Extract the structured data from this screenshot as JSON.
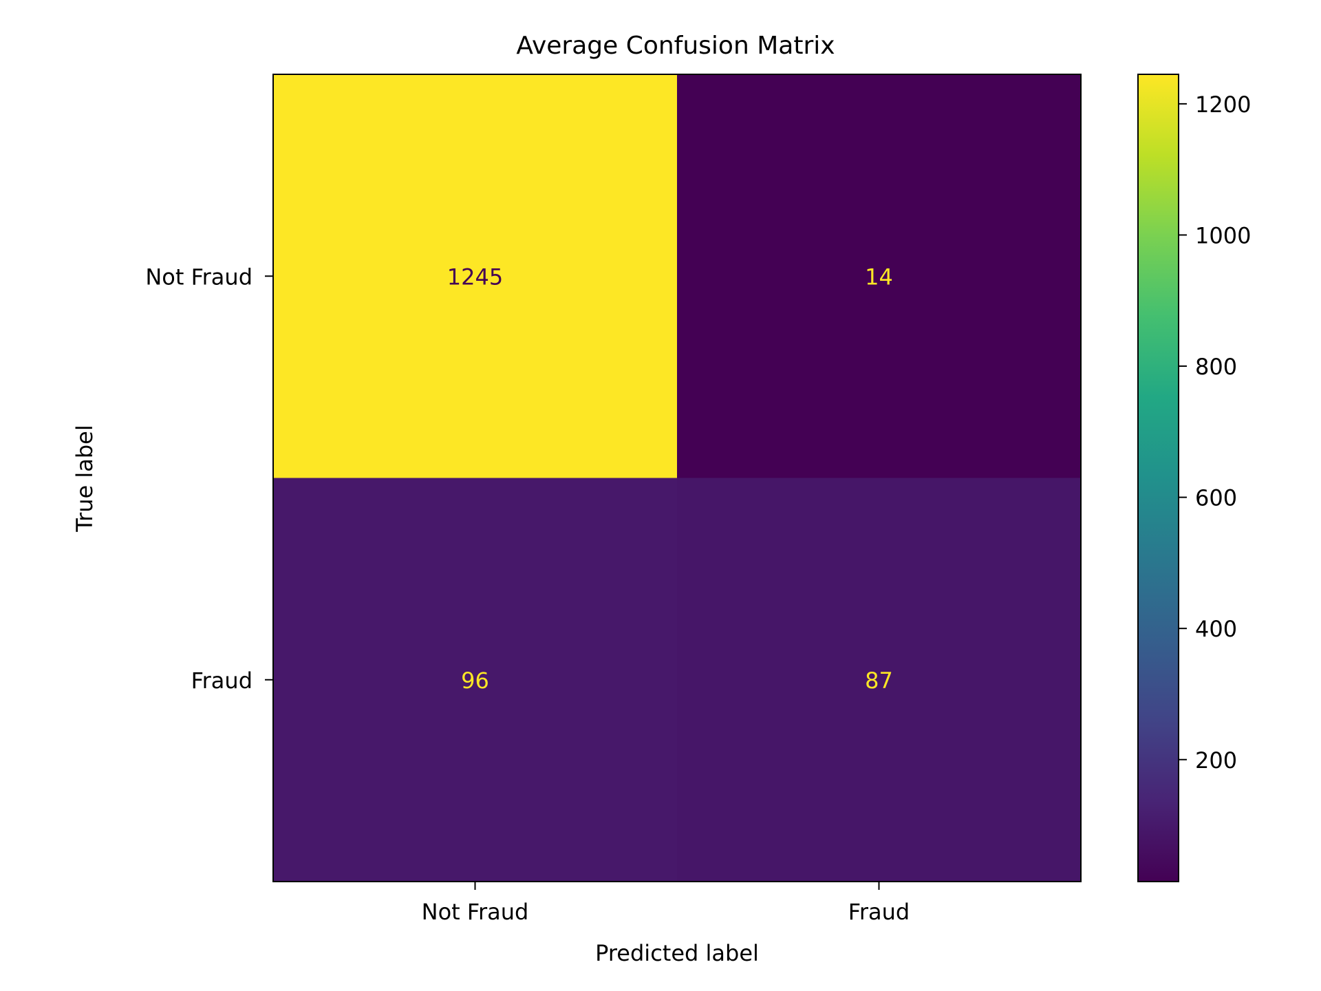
{
  "chart_data": {
    "type": "heatmap",
    "title": "Average Confusion Matrix",
    "xlabel": "Predicted label",
    "ylabel": "True label",
    "x_categories": [
      "Not Fraud",
      "Fraud"
    ],
    "y_categories": [
      "Not Fraud",
      "Fraud"
    ],
    "values": [
      [
        1245,
        14
      ],
      [
        96,
        87
      ]
    ],
    "colormap": "viridis",
    "colorbar": {
      "range": [
        14,
        1245
      ],
      "ticks": [
        200,
        400,
        600,
        800,
        1000,
        1200
      ],
      "tick_labels": [
        "200",
        "400",
        "600",
        "800",
        "1000",
        "1200"
      ]
    },
    "grid": false,
    "text_colors": {
      "low": "#fde725",
      "high": "#440154"
    }
  }
}
